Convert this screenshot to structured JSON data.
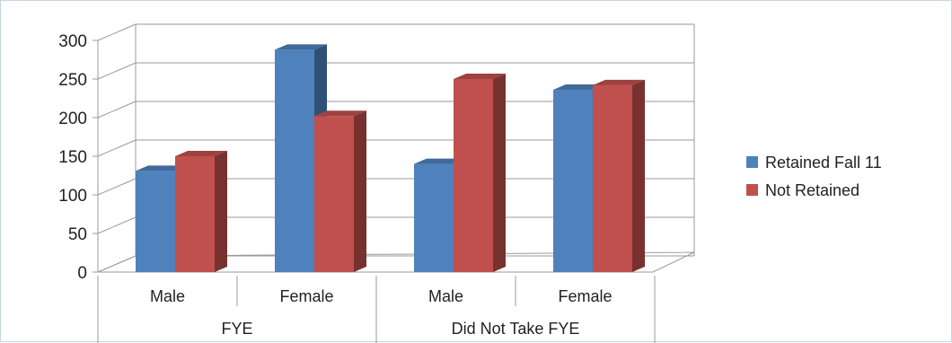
{
  "chart_data": {
    "type": "bar",
    "groups": [
      {
        "label": "FYE",
        "categories": [
          "Male",
          "Female"
        ]
      },
      {
        "label": "Did Not Take FYE",
        "categories": [
          "Male",
          "Female"
        ]
      }
    ],
    "categories": [
      "Male",
      "Female",
      "Male",
      "Female"
    ],
    "series": [
      {
        "name": "Retained Fall 11",
        "color": "#4f81bd",
        "values": [
          131,
          288,
          140,
          236
        ]
      },
      {
        "name": "Not Retained",
        "color": "#c0504d",
        "values": [
          150,
          202,
          250,
          242
        ]
      }
    ],
    "yticks": [
      0,
      50,
      100,
      150,
      200,
      250,
      300
    ],
    "ylim": [
      0,
      300
    ],
    "grid": true,
    "legend_position": "right",
    "style": "3d-clustered-column"
  }
}
